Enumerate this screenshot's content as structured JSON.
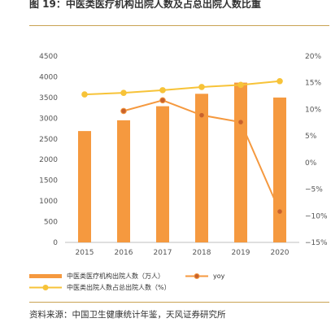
{
  "figure": {
    "title": "图 19：中医类医疗机构出院人数及占总出院人数比重",
    "source": "资料来源：中国卫生健康统计年鉴，天风证券研究所"
  },
  "colors": {
    "bar": "#f5993f",
    "yoy": "#f5993f",
    "yoy_marker": "#c8622d",
    "share": "#f7c338",
    "share_marker": "#f7c338",
    "rule": "#c9a253",
    "axis": "#bfbfbf"
  },
  "chart_data": {
    "type": "bar",
    "categories": [
      "2015",
      "2016",
      "2017",
      "2018",
      "2019",
      "2020"
    ],
    "series": [
      {
        "name": "中医类医疗机构出院人数（万人）",
        "type": "bar",
        "axis": "left",
        "values": [
          2690,
          2950,
          3290,
          3590,
          3860,
          3500
        ]
      },
      {
        "name": "yoy",
        "type": "line",
        "axis": "right",
        "unit": "%",
        "values": [
          null,
          9.7,
          11.7,
          8.9,
          7.6,
          -9.2
        ]
      },
      {
        "name": "中医类出院人数占总出院人数（%）",
        "type": "line",
        "axis": "right",
        "unit": "%",
        "values": [
          12.8,
          13.1,
          13.6,
          14.2,
          14.6,
          15.3
        ]
      }
    ],
    "left_axis": {
      "ylim": [
        0,
        4500
      ],
      "ticks": [
        "0",
        "500",
        "1000",
        "1500",
        "2000",
        "2500",
        "3000",
        "3500",
        "4000",
        "4500"
      ]
    },
    "right_axis": {
      "ylim": [
        -15,
        20
      ],
      "ticks": [
        "−15%",
        "−10%",
        "−5%",
        "0%",
        "5%",
        "10%",
        "15%",
        "20%"
      ]
    },
    "legend_placement": "bottom-left",
    "grid": false
  }
}
